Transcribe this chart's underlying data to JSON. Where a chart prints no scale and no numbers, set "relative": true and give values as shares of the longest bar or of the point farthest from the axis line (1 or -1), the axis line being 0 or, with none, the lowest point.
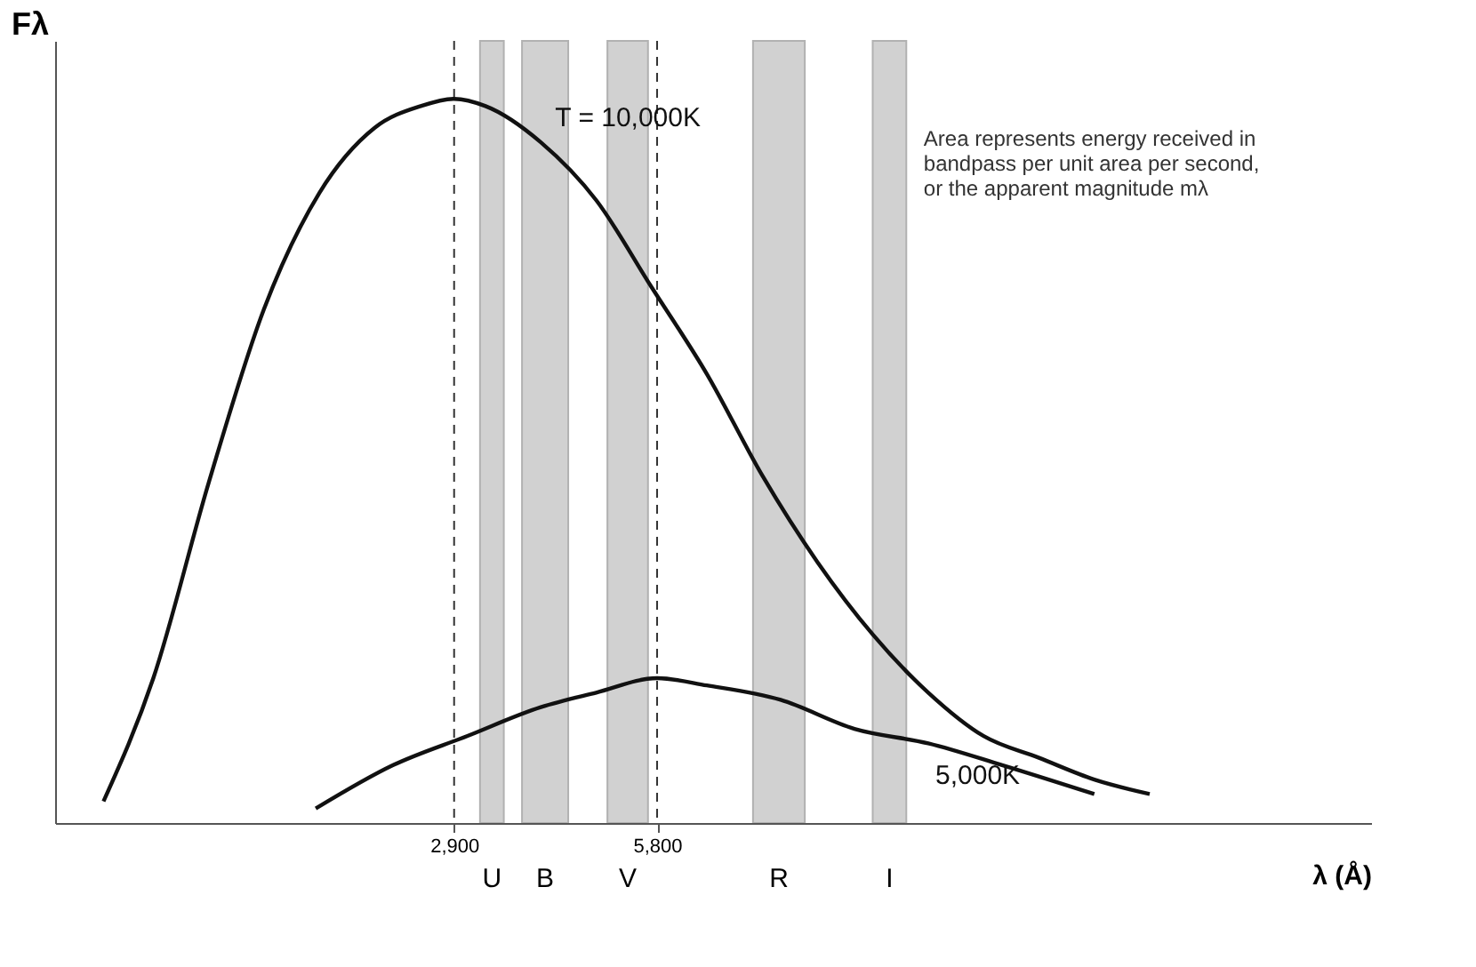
{
  "chart_data": {
    "type": "line",
    "relative": true,
    "ylabel": "Fλ",
    "xlabel": "λ (Å)",
    "xlim": [
      -2800,
      16000
    ],
    "xticks": [
      {
        "value": 2900,
        "label": "2,900"
      },
      {
        "value": 5800,
        "label": "5,800"
      }
    ],
    "series": [
      {
        "name": "T = 10,000K",
        "color": "#111111",
        "x": [
          -2109,
          -1397,
          -606,
          185,
          975,
          1766,
          2425,
          2900,
          3348,
          4139,
          4930,
          5720,
          6511,
          7302,
          8093,
          8884,
          9674,
          10465,
          11256,
          12046,
          12837
        ],
        "values": [
          0.03,
          0.2,
          0.47,
          0.71,
          0.87,
          0.96,
          0.99,
          1,
          0.99,
          0.94,
          0.86,
          0.74,
          0.62,
          0.48,
          0.36,
          0.26,
          0.18,
          0.12,
          0.09,
          0.06,
          0.04
        ]
      },
      {
        "name": "5,000K",
        "color": "#111111",
        "x": [
          923,
          2030,
          3084,
          4139,
          4930,
          5800,
          6511,
          7565,
          8620,
          9674,
          10729,
          12046
        ],
        "values": [
          0.02,
          0.08,
          0.12,
          0.16,
          0.18,
          0.2,
          0.19,
          0.17,
          0.13,
          0.11,
          0.08,
          0.04
        ]
      }
    ],
    "ref_lines": [
      {
        "axis": "x",
        "value": 2900,
        "line_style": "dashed"
      },
      {
        "axis": "x",
        "value": 5800,
        "line_style": "dashed"
      }
    ],
    "bands": [
      {
        "axis": "x",
        "from": 3270,
        "to": 3610,
        "label": "U",
        "color": "#9a9a9a"
      },
      {
        "axis": "x",
        "from": 3870,
        "to": 4530,
        "label": "B",
        "color": "#9a9a9a"
      },
      {
        "axis": "x",
        "from": 5090,
        "to": 5670,
        "label": "V",
        "color": "#9a9a9a"
      },
      {
        "axis": "x",
        "from": 7170,
        "to": 7910,
        "label": "R",
        "color": "#9a9a9a"
      },
      {
        "axis": "x",
        "from": 8880,
        "to": 9360,
        "label": "I",
        "color": "#9a9a9a"
      }
    ],
    "annotations": [
      "Area represents energy received in bandpass per unit area per second, or the apparent magnitude mλ"
    ],
    "grid": false
  }
}
